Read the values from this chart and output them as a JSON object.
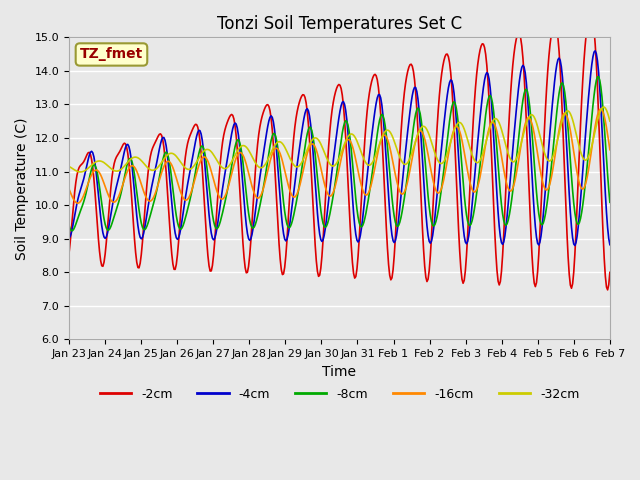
{
  "title": "Tonzi Soil Temperatures Set C",
  "xlabel": "Time",
  "ylabel": "Soil Temperature (C)",
  "ylim": [
    6.0,
    15.0
  ],
  "yticks": [
    6.0,
    7.0,
    8.0,
    9.0,
    10.0,
    11.0,
    12.0,
    13.0,
    14.0,
    15.0
  ],
  "annotation_text": "TZ_fmet",
  "annotation_bg": "#ffffcc",
  "annotation_border": "#999933",
  "annotation_color": "#990000",
  "series_colors": [
    "#dd0000",
    "#0000cc",
    "#00aa00",
    "#ff8800",
    "#cccc00"
  ],
  "series_labels": [
    "-2cm",
    "-4cm",
    "-8cm",
    "-16cm",
    "-32cm"
  ],
  "bg_color": "#e8e8e8",
  "xtick_labels": [
    "Jan 23",
    "Jan 24",
    "Jan 25",
    "Jan 26",
    "Jan 27",
    "Jan 28",
    "Jan 29",
    "Jan 30",
    "Jan 31",
    "Feb 1",
    "Feb 2",
    "Feb 3",
    "Feb 4",
    "Feb 5",
    "Feb 6",
    "Feb 7"
  ],
  "n_points": 480,
  "days": 15,
  "title_fontsize": 12,
  "axis_fontsize": 10,
  "tick_fontsize": 8,
  "legend_fontsize": 9
}
